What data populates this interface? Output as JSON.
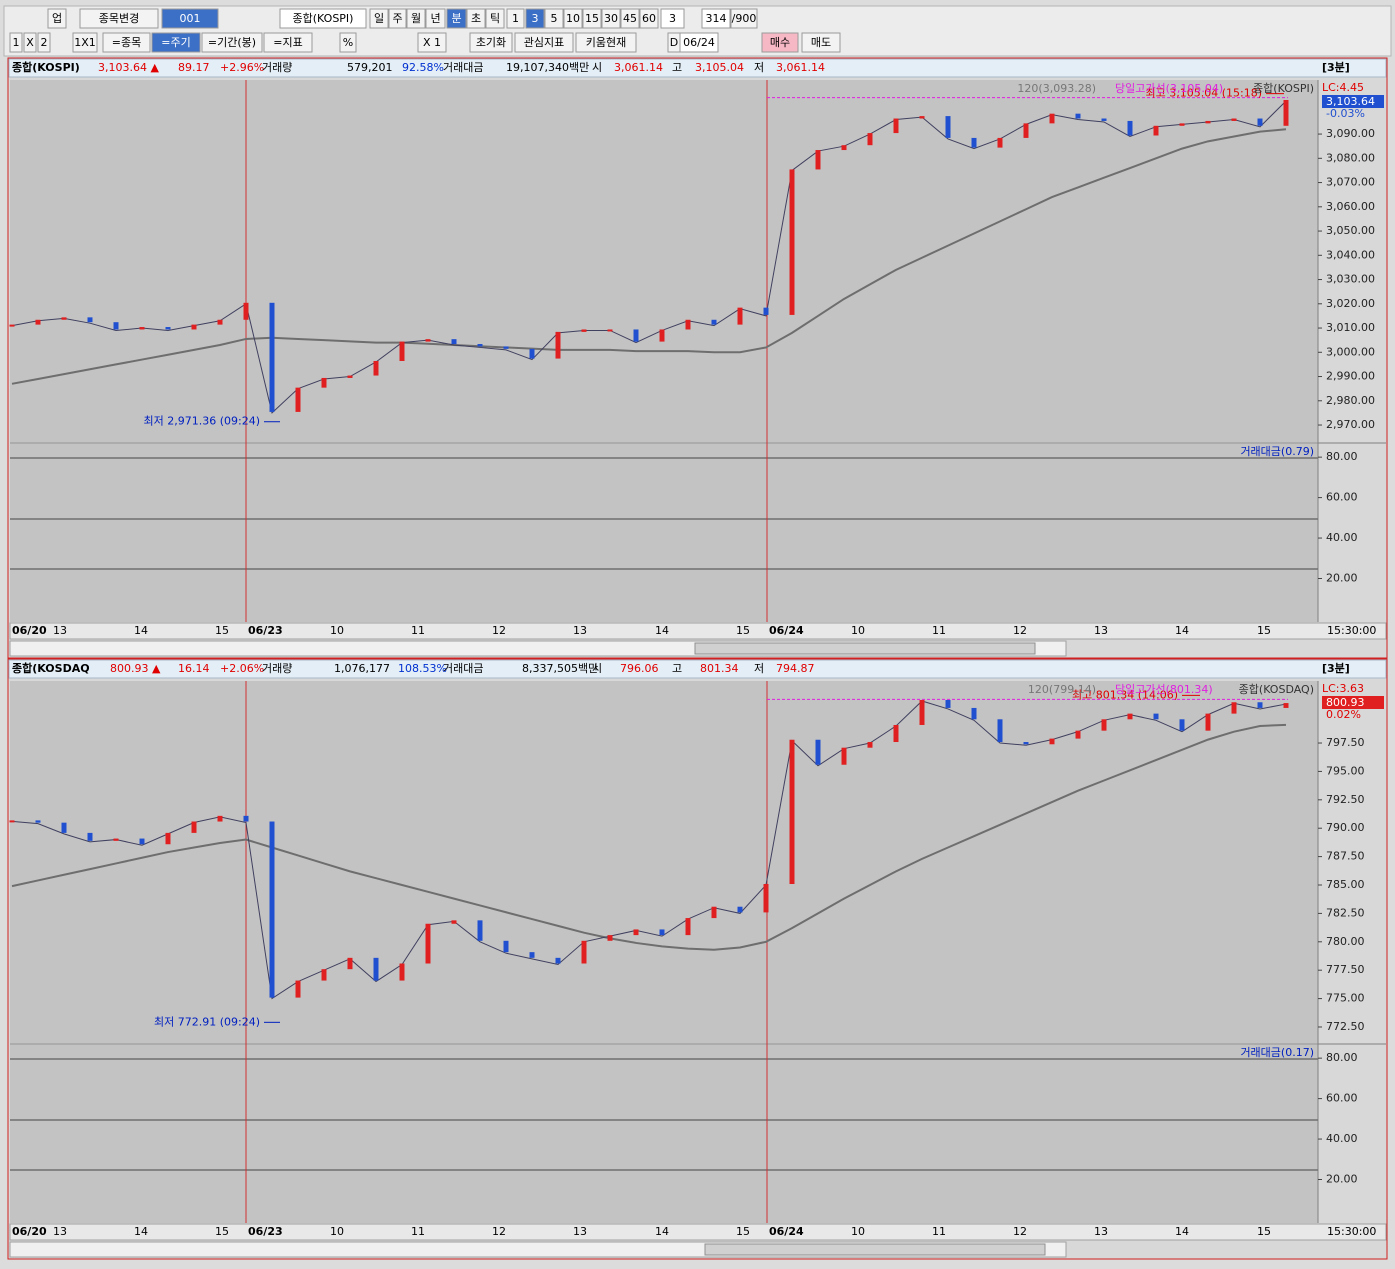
{
  "toolbar": {
    "row1": [
      "업",
      "종목변경",
      "001",
      "종합(KOSPI)",
      "일",
      "주",
      "월",
      "년",
      "분",
      "초",
      "틱",
      "1",
      "3",
      "5",
      "10",
      "15",
      "30",
      "45",
      "60",
      "3",
      "314",
      "/900"
    ],
    "row2": [
      "1",
      "X",
      "2",
      "1X1",
      "=종목",
      "=주기",
      "=기간(봉)",
      "=지표",
      "%",
      "X 1",
      "초기화",
      "관심지표",
      "키움현재",
      "D",
      "06/24",
      "매수",
      "매도"
    ]
  },
  "panels": [
    {
      "header": [
        "종합(KOSPI)",
        "3,103.64 ▲",
        "89.17",
        "+2.96%",
        "거래량",
        "579,201",
        "92.58%",
        "거래대금",
        "19,107,340백만",
        "시",
        "3,061.14",
        "고",
        "3,105.04",
        "저",
        "3,061.14"
      ],
      "interval": "[3분]",
      "ma_label": "120(3,093.28)",
      "high_line_label": "당일고가선(3,105.04)",
      "name_label": "종합(KOSPI)",
      "high_note": "최고 3,105.04 (15:18)",
      "low_note": "최저 2,971.36 (09:24)",
      "lc": "LC:4.45",
      "last_price": "3,103.64",
      "last_change": "-0.03%",
      "volume_label": "거래대금(0.79)",
      "time": "15:30:00",
      "high": 3105.04,
      "low": 2971.36,
      "ylim": [
        2963,
        3112.3
      ],
      "yticks": [
        {
          "value": 2970,
          "label": "2,970.00"
        },
        {
          "value": 2980,
          "label": "2,980.00"
        },
        {
          "value": 2990,
          "label": "2,990.00"
        },
        {
          "value": 3000,
          "label": "3,000.00"
        },
        {
          "value": 3010,
          "label": "3,010.00"
        },
        {
          "value": 3020,
          "label": "3,020.00"
        },
        {
          "value": 3030,
          "label": "3,030.00"
        },
        {
          "value": 3040,
          "label": "3,040.00"
        },
        {
          "value": 3050,
          "label": "3,050.00"
        },
        {
          "value": 3060,
          "label": "3,060.00"
        },
        {
          "value": 3070,
          "label": "3,070.00"
        },
        {
          "value": 3080,
          "label": "3,080.00"
        },
        {
          "value": 3090,
          "label": "3,090.00"
        }
      ],
      "vol_ylim": [
        -1.5,
        86.5
      ],
      "vol_yticks": [
        {
          "value": 80,
          "label": "80.00"
        },
        {
          "value": 60,
          "label": "60.00"
        },
        {
          "value": 40,
          "label": "40.00"
        },
        {
          "value": 20,
          "label": "20.00"
        }
      ],
      "xlabels": [
        "06/20",
        "13",
        "14",
        "15",
        "06/23",
        "10",
        "11",
        "12",
        "13",
        "14",
        "15",
        "06/24",
        "10",
        "11",
        "12",
        "13",
        "14",
        "15"
      ],
      "price": [
        3011,
        3013,
        3014,
        3012,
        3009,
        3010,
        3009,
        3011,
        3013,
        3020,
        2975,
        2985,
        2989,
        2990,
        2996,
        3004,
        3005,
        3003,
        3002,
        3001,
        2997,
        3008,
        3009,
        3009,
        3004,
        3009,
        3013,
        3011,
        3018,
        3015,
        3075,
        3083,
        3085,
        3090,
        3096,
        3097,
        3088,
        3084,
        3088,
        3094,
        3098,
        3096,
        3095,
        3089,
        3093,
        3094,
        3095,
        3096,
        3093,
        3103.64
      ],
      "ma": [
        2987,
        2989,
        2991,
        2993,
        2995,
        2997,
        2999,
        3001,
        3003,
        3005.5,
        3006,
        3005.5,
        3005,
        3004.5,
        3004,
        3004,
        3003.5,
        3003,
        3002.5,
        3002,
        3001.5,
        3001,
        3001,
        3001,
        3000.5,
        3000.5,
        3000.5,
        3000,
        3000,
        3002,
        3008,
        3015,
        3022,
        3028,
        3034,
        3039,
        3044,
        3049,
        3054,
        3059,
        3064,
        3068,
        3072,
        3076,
        3080,
        3084,
        3087,
        3089,
        3091,
        3092
      ]
    },
    {
      "header": [
        "종합(KOSDAQ",
        "800.93 ▲",
        "16.14",
        "+2.06%",
        "거래량",
        "1,076,177",
        "108.53%",
        "거래대금",
        "8,337,505백만",
        "시",
        "796.06",
        "고",
        "801.34",
        "저",
        "794.87"
      ],
      "interval": "[3분]",
      "ma_label": "120(799.14)",
      "high_line_label": "당일고가선(801.34)",
      "name_label": "종합(KOSDAQ)",
      "high_note": "최고 801.34 (14:06)",
      "low_note": "최저 772.91 (09:24)",
      "lc": "LC:3.63",
      "last_price": "800.93",
      "last_change": "0.02%",
      "volume_label": "거래대금(0.17)",
      "time": "15:30:00",
      "high": 801.34,
      "low": 772.91,
      "ylim": [
        771.09,
        802.96
      ],
      "yticks": [
        {
          "value": 772.5,
          "label": "772.50"
        },
        {
          "value": 775,
          "label": "775.00"
        },
        {
          "value": 777.5,
          "label": "777.50"
        },
        {
          "value": 780,
          "label": "780.00"
        },
        {
          "value": 782.5,
          "label": "782.50"
        },
        {
          "value": 785,
          "label": "785.00"
        },
        {
          "value": 787.5,
          "label": "787.50"
        },
        {
          "value": 790,
          "label": "790.00"
        },
        {
          "value": 792.5,
          "label": "792.50"
        },
        {
          "value": 795,
          "label": "795.00"
        },
        {
          "value": 797.5,
          "label": "797.50"
        }
      ],
      "vol_ylim": [
        -1.5,
        86.5
      ],
      "vol_yticks": [
        {
          "value": 80,
          "label": "80.00"
        },
        {
          "value": 60,
          "label": "60.00"
        },
        {
          "value": 40,
          "label": "40.00"
        },
        {
          "value": 20,
          "label": "20.00"
        }
      ],
      "xlabels": [
        "06/20",
        "13",
        "14",
        "15",
        "06/23",
        "10",
        "11",
        "12",
        "13",
        "14",
        "15",
        "06/24",
        "10",
        "11",
        "12",
        "13",
        "14",
        "15"
      ],
      "price": [
        790.6,
        790.4,
        789.5,
        788.8,
        789,
        788.5,
        789.5,
        790.5,
        791,
        790.5,
        775,
        776.5,
        777.5,
        778.5,
        776.5,
        778,
        781.5,
        781.8,
        780,
        779,
        778.5,
        778,
        780,
        780.5,
        781,
        780.5,
        782,
        783,
        782.5,
        785,
        797.7,
        795.5,
        797,
        797.5,
        799,
        801.2,
        800.5,
        799.5,
        797.5,
        797.3,
        797.8,
        798.5,
        799.5,
        800,
        799.5,
        798.5,
        800,
        801,
        800.5,
        800.93
      ],
      "ma": [
        784.9,
        785.4,
        785.9,
        786.4,
        786.9,
        787.4,
        787.9,
        788.3,
        788.7,
        789,
        788.3,
        787.6,
        786.9,
        786.2,
        785.6,
        785,
        784.4,
        783.8,
        783.2,
        782.6,
        782,
        781.4,
        780.8,
        780.3,
        779.9,
        779.6,
        779.4,
        779.3,
        779.5,
        780,
        781.2,
        782.5,
        783.8,
        785,
        786.2,
        787.3,
        788.3,
        789.3,
        790.3,
        791.3,
        792.3,
        793.3,
        794.2,
        795.1,
        796,
        796.9,
        797.8,
        798.5,
        799,
        799.1
      ]
    }
  ]
}
